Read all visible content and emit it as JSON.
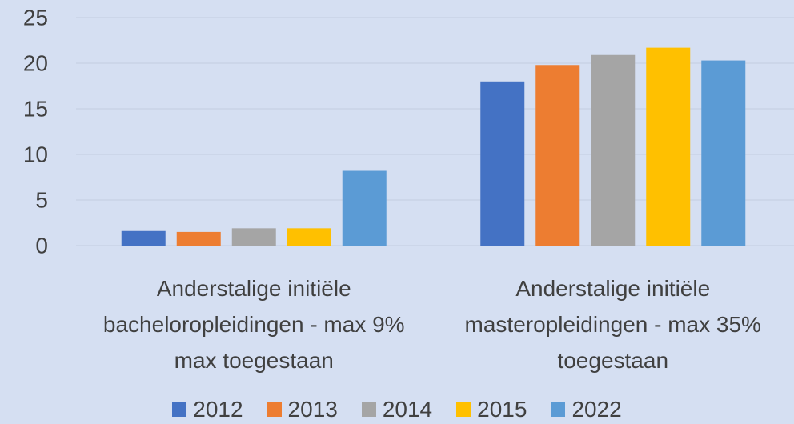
{
  "chart_data": {
    "type": "bar",
    "categories": [
      "Anderstalige initiële bacheloropleidingen - max 9% max toegestaan",
      "Anderstalige initiële masteropleidingen - max 35% toegestaan"
    ],
    "series": [
      {
        "name": "2012",
        "color": "#4472c4",
        "values": [
          1.6,
          18.0
        ]
      },
      {
        "name": "2013",
        "color": "#ed7d31",
        "values": [
          1.5,
          19.8
        ]
      },
      {
        "name": "2014",
        "color": "#a5a5a5",
        "values": [
          1.9,
          20.9
        ]
      },
      {
        "name": "2015",
        "color": "#ffc000",
        "values": [
          1.9,
          21.7
        ]
      },
      {
        "name": "2022",
        "color": "#5b9bd5",
        "values": [
          8.2,
          20.3
        ]
      }
    ],
    "ylim": [
      0,
      25
    ],
    "yticks": [
      0,
      5,
      10,
      15,
      20,
      25
    ],
    "grid": true,
    "legend": "bottom"
  }
}
